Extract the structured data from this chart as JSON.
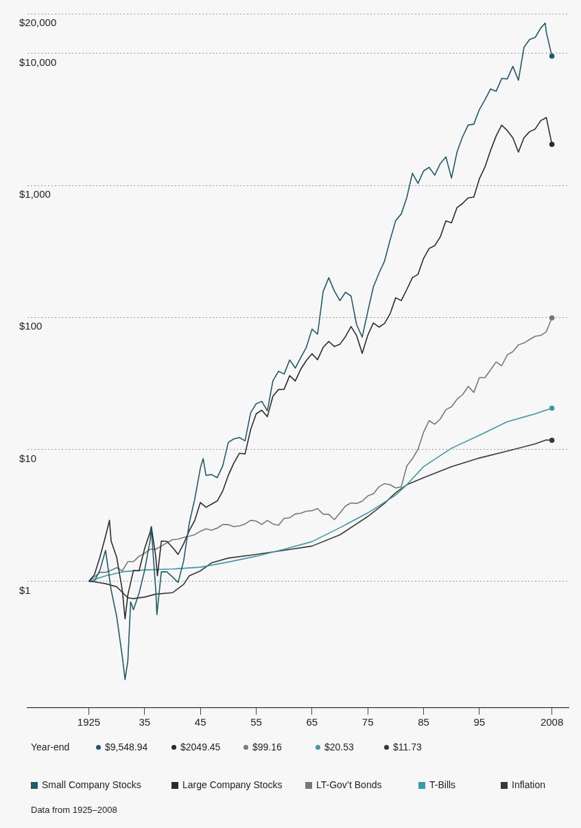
{
  "chart_data": {
    "type": "line",
    "log": "y",
    "grid": "y",
    "legend": "bottom",
    "line_style": "solid",
    "xlim": [
      1914,
      2011
    ],
    "xticks": [
      1925,
      {
        "value": 1935,
        "label": "35"
      },
      {
        "value": 1945,
        "label": "45"
      },
      {
        "value": 1955,
        "label": "55"
      },
      {
        "value": 1965,
        "label": "65"
      },
      {
        "value": 1975,
        "label": "75"
      },
      {
        "value": 1985,
        "label": "85"
      },
      {
        "value": 1995,
        "label": "95"
      },
      2008
    ],
    "ylim": [
      0.11,
      20000
    ],
    "yticks": [
      {
        "value": 1,
        "label": "$1"
      },
      {
        "value": 10,
        "label": "$10"
      },
      {
        "value": 100,
        "label": "$100"
      },
      {
        "value": 1000,
        "label": "$1,000"
      },
      {
        "value": 10000,
        "label": "$10,000"
      },
      {
        "value": 20000,
        "label": "$20,000"
      }
    ],
    "annotations": [
      "Year-end",
      "$9,548.94",
      "$2049.45",
      "$99.16",
      "$20.53",
      "$11.73",
      "Data from 1925–2008"
    ],
    "series": [
      {
        "name": "Small Company Stocks",
        "color": "#1d5a6b",
        "x": [
          1925,
          1926,
          1927,
          1928,
          1929,
          1930,
          1931,
          1931.5,
          1932,
          1932.5,
          1933,
          1934,
          1935,
          1936,
          1936.2,
          1937,
          1937.2,
          1938,
          1939,
          1940,
          1941,
          1942,
          1943,
          1944,
          1945,
          1945.5,
          1946,
          1947,
          1948,
          1949,
          1950,
          1951,
          1952,
          1953,
          1954,
          1955,
          1956,
          1957,
          1958,
          1959,
          1960,
          1961,
          1962,
          1963,
          1964,
          1965,
          1966,
          1967,
          1968,
          1969,
          1970,
          1971,
          1972,
          1973,
          1974,
          1975,
          1976,
          1977,
          1978,
          1979,
          1980,
          1981,
          1982,
          1983,
          1984,
          1985,
          1986,
          1987,
          1988,
          1989,
          1990,
          1991,
          1992,
          1993,
          1994,
          1995,
          1996,
          1997,
          1998,
          1999,
          2000,
          2001,
          2002,
          2003,
          2004,
          2005,
          2006,
          2006.8,
          2007,
          2008
        ],
        "values": [
          1,
          1.0,
          1.22,
          1.72,
          0.86,
          0.54,
          0.27,
          0.18,
          0.25,
          0.7,
          0.61,
          0.81,
          1.21,
          2.06,
          2.5,
          0.86,
          0.56,
          1.18,
          1.18,
          1.08,
          0.98,
          1.43,
          2.75,
          4.23,
          7.23,
          8.5,
          6.35,
          6.45,
          6.1,
          7.49,
          11.3,
          12,
          12.3,
          11.6,
          18.9,
          22.2,
          23.1,
          19.6,
          33.1,
          39.1,
          37.2,
          47.6,
          41.3,
          49.7,
          59.5,
          81.5,
          74.6,
          157,
          200,
          159,
          134,
          155,
          145,
          88,
          71,
          111,
          170,
          216,
          267,
          386,
          541,
          608,
          812,
          1238,
          1036,
          1287,
          1371,
          1196,
          1465,
          1646,
          1137,
          1795,
          2343,
          2868,
          2911,
          3759,
          4456,
          5383,
          5170,
          6462,
          6416,
          7987,
          6264,
          11153,
          12768,
          13232,
          15576,
          17000,
          14448,
          9548.94
        ]
      },
      {
        "name": "Large Company Stocks",
        "color": "#2b2b2b",
        "x": [
          1925,
          1926,
          1927,
          1928,
          1928.7,
          1929,
          1930,
          1931,
          1931.5,
          1932,
          1933,
          1934,
          1935,
          1936,
          1936.2,
          1937,
          1937.3,
          1938,
          1939,
          1940,
          1941,
          1942,
          1943,
          1944,
          1945,
          1946,
          1947,
          1948,
          1949,
          1950,
          1951,
          1952,
          1953,
          1954,
          1955,
          1956,
          1957,
          1958,
          1959,
          1960,
          1961,
          1962,
          1963,
          1964,
          1965,
          1966,
          1967,
          1968,
          1969,
          1970,
          1971,
          1972,
          1973,
          1974,
          1975,
          1976,
          1977,
          1978,
          1979,
          1980,
          1981,
          1982,
          1983,
          1984,
          1985,
          1986,
          1987,
          1988,
          1989,
          1990,
          1991,
          1992,
          1993,
          1994,
          1995,
          1996,
          1997,
          1998,
          1999,
          2000,
          2001,
          2002,
          2003,
          2004,
          2005,
          2006,
          2007,
          2008
        ],
        "values": [
          1,
          1.12,
          1.53,
          2.2,
          2.9,
          2.02,
          1.52,
          0.86,
          0.52,
          0.79,
          1.21,
          1.2,
          1.77,
          2.37,
          2.6,
          1.54,
          1.1,
          2.02,
          2.01,
          1.81,
          1.6,
          1.93,
          2.42,
          2.9,
          3.96,
          3.64,
          3.85,
          4.06,
          4.83,
          6.36,
          7.89,
          9.34,
          9.24,
          14.1,
          18.6,
          19.8,
          17.7,
          25.3,
          28.4,
          28.5,
          36.2,
          33,
          40.6,
          47.2,
          53.1,
          47.8,
          59.2,
          65.8,
          60.2,
          62.6,
          71.6,
          85.2,
          72.7,
          53.4,
          73.3,
          90.8,
          84.4,
          89.9,
          106.5,
          141,
          134,
          163,
          200,
          212,
          280,
          333,
          350,
          408,
          538,
          521,
          680,
          731,
          805,
          816,
          1123,
          1380,
          1841,
          2367,
          2865,
          2604,
          2295,
          1788,
          2300,
          2551,
          2676,
          3099,
          3269,
          2049.45
        ]
      },
      {
        "name": "LT-Gov’t Bonds",
        "color": "#777777",
        "x": [
          1925,
          1926,
          1927,
          1928,
          1929,
          1930,
          1931,
          1932,
          1933,
          1934,
          1935,
          1936,
          1937,
          1938,
          1939,
          1940,
          1941,
          1942,
          1943,
          1944,
          1945,
          1946,
          1947,
          1948,
          1949,
          1950,
          1951,
          1952,
          1953,
          1954,
          1955,
          1956,
          1957,
          1958,
          1959,
          1960,
          1961,
          1962,
          1963,
          1964,
          1965,
          1966,
          1967,
          1968,
          1969,
          1970,
          1971,
          1972,
          1973,
          1974,
          1975,
          1976,
          1977,
          1978,
          1979,
          1980,
          1981,
          1982,
          1983,
          1984,
          1985,
          1986,
          1987,
          1988,
          1989,
          1990,
          1991,
          1992,
          1993,
          1994,
          1995,
          1996,
          1997,
          1998,
          1999,
          2000,
          2001,
          2002,
          2003,
          2004,
          2005,
          2006,
          2007,
          2008
        ],
        "values": [
          1,
          1.08,
          1.17,
          1.17,
          1.21,
          1.27,
          1.2,
          1.41,
          1.41,
          1.55,
          1.63,
          1.75,
          1.75,
          1.85,
          1.96,
          2.07,
          2.09,
          2.15,
          2.2,
          2.26,
          2.4,
          2.5,
          2.44,
          2.53,
          2.69,
          2.69,
          2.6,
          2.63,
          2.72,
          2.9,
          2.86,
          2.7,
          2.9,
          2.72,
          2.66,
          3.0,
          3.03,
          3.24,
          3.28,
          3.4,
          3.43,
          3.56,
          3.23,
          3.22,
          2.93,
          3.29,
          3.72,
          3.93,
          3.89,
          4.05,
          4.44,
          4.6,
          5.2,
          5.5,
          5.4,
          5.1,
          5.2,
          7.5,
          8.5,
          10,
          13.5,
          16.5,
          15.5,
          17,
          20,
          21,
          24,
          26,
          30,
          27,
          35,
          35,
          40,
          46,
          43,
          52,
          55,
          62,
          64,
          68,
          72,
          73,
          78,
          99.16
        ]
      },
      {
        "name": "T-Bills",
        "color": "#3a9aa6",
        "x": [
          1925,
          1928,
          1931,
          1935,
          1940,
          1945,
          1950,
          1955,
          1960,
          1965,
          1970,
          1975,
          1980,
          1982,
          1985,
          1990,
          1995,
          2000,
          2005,
          2008
        ],
        "values": [
          1,
          1.1,
          1.18,
          1.22,
          1.24,
          1.28,
          1.4,
          1.55,
          1.75,
          2.0,
          2.55,
          3.3,
          4.5,
          5.4,
          7.4,
          10.2,
          12.8,
          16.2,
          18.6,
          20.53
        ]
      },
      {
        "name": "Inflation",
        "color": "#3d3535",
        "x": [
          1925,
          1926,
          1928,
          1930,
          1932,
          1933,
          1935,
          1937,
          1940,
          1942,
          1943,
          1945,
          1947,
          1950,
          1955,
          1960,
          1965,
          1970,
          1975,
          1978,
          1980,
          1982,
          1985,
          1990,
          1995,
          2000,
          2005,
          2007,
          2008
        ],
        "values": [
          1,
          0.99,
          0.96,
          0.91,
          0.75,
          0.74,
          0.76,
          0.8,
          0.82,
          0.95,
          1.1,
          1.2,
          1.38,
          1.5,
          1.6,
          1.72,
          1.85,
          2.25,
          3.1,
          3.9,
          4.7,
          5.4,
          6.1,
          7.4,
          8.6,
          9.7,
          11.0,
          11.8,
          11.73
        ]
      }
    ]
  }
}
